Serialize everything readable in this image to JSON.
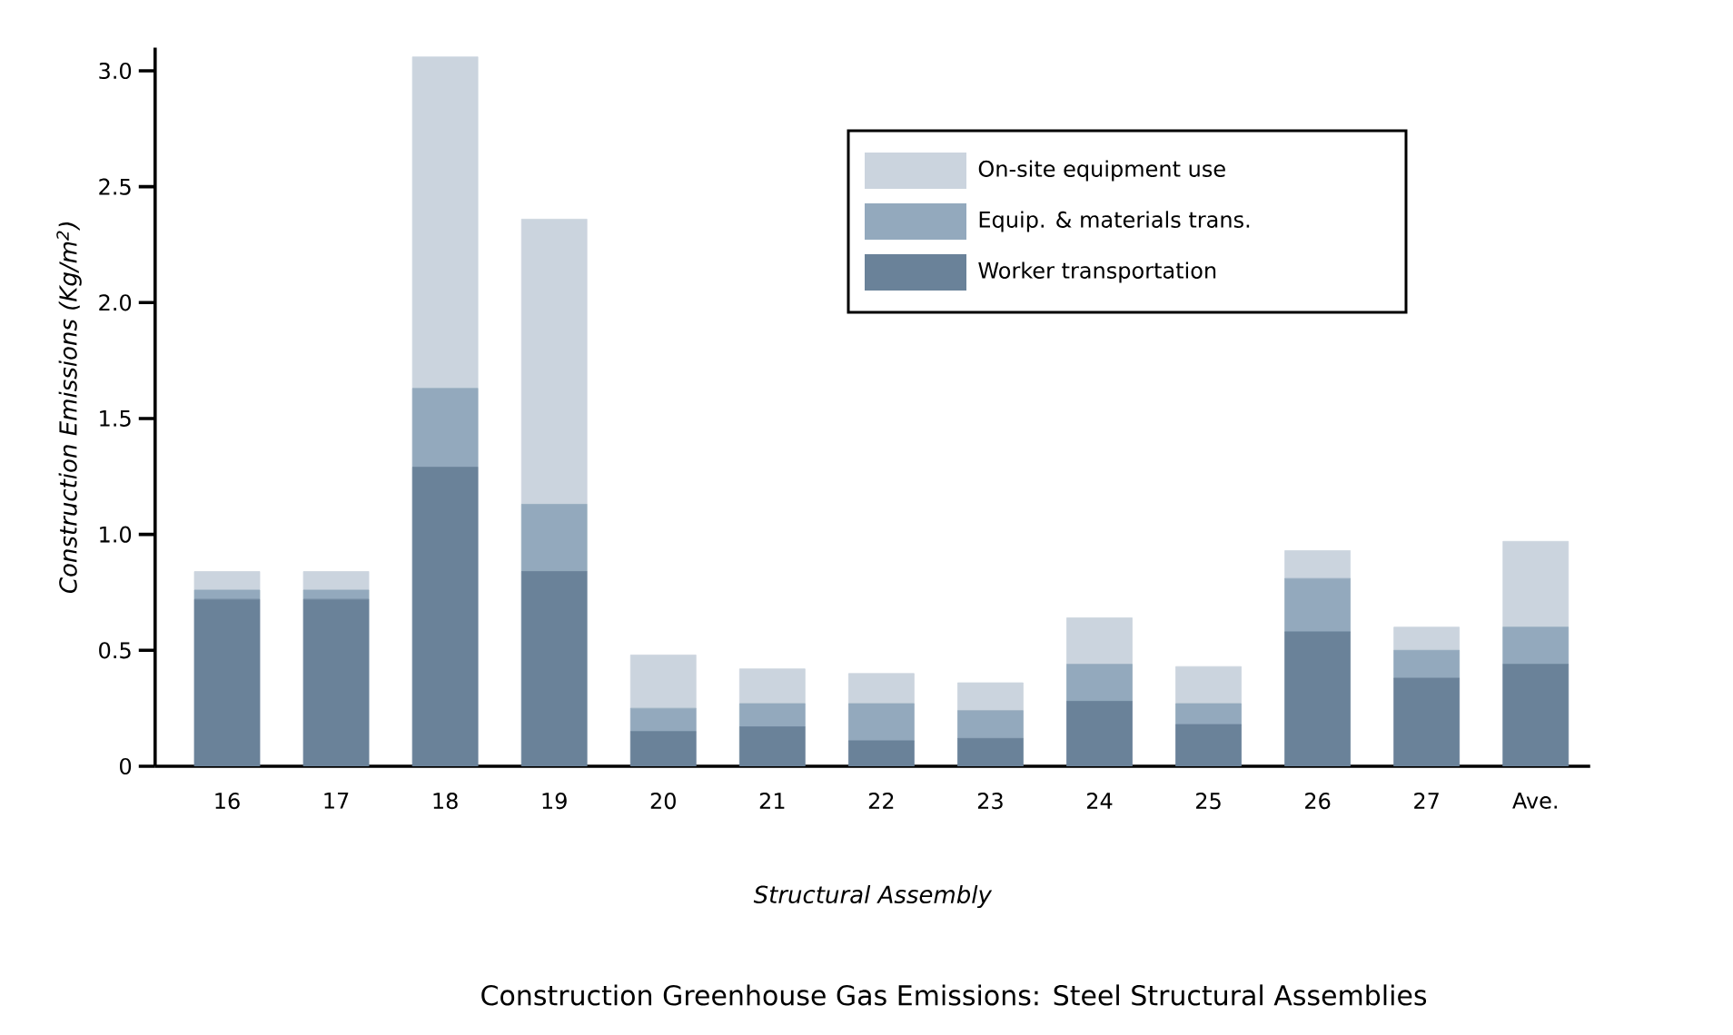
{
  "chart_data": {
    "type": "bar",
    "stacked": true,
    "title": "Construction Greenhouse Gas Emissions: Steel Structural Assemblies",
    "xlabel": "Structural Assembly",
    "ylabel": "Construction Emissions (Kg/m$^{2}$)",
    "categories": [
      "16",
      "17",
      "18",
      "19",
      "20",
      "21",
      "22",
      "23",
      "24",
      "25",
      "26",
      "27",
      "Ave."
    ],
    "series": [
      {
        "name": "Worker transportation",
        "color": "#6a8299",
        "values": [
          0.72,
          0.72,
          1.29,
          0.84,
          0.15,
          0.17,
          0.11,
          0.12,
          0.28,
          0.18,
          0.58,
          0.38,
          0.44
        ]
      },
      {
        "name": "Equip. & materials trans.",
        "color": "#93a9bd",
        "values": [
          0.04,
          0.04,
          0.34,
          0.29,
          0.1,
          0.1,
          0.16,
          0.12,
          0.16,
          0.09,
          0.23,
          0.12,
          0.16
        ]
      },
      {
        "name": "On-site equipment use",
        "color": "#cbd4de",
        "values": [
          0.08,
          0.08,
          1.43,
          1.23,
          0.23,
          0.15,
          0.13,
          0.12,
          0.2,
          0.16,
          0.12,
          0.1,
          0.37
        ]
      }
    ],
    "ylim": [
      0,
      3.1
    ],
    "yticks": [
      {
        "value": 0,
        "label": "0"
      },
      0.5,
      {
        "value": 1,
        "label": "1.0"
      },
      1.5,
      {
        "value": 2,
        "label": "2.0"
      },
      2.5,
      {
        "value": 3,
        "label": "3.0"
      }
    ],
    "grid": false,
    "legend": "top right"
  }
}
